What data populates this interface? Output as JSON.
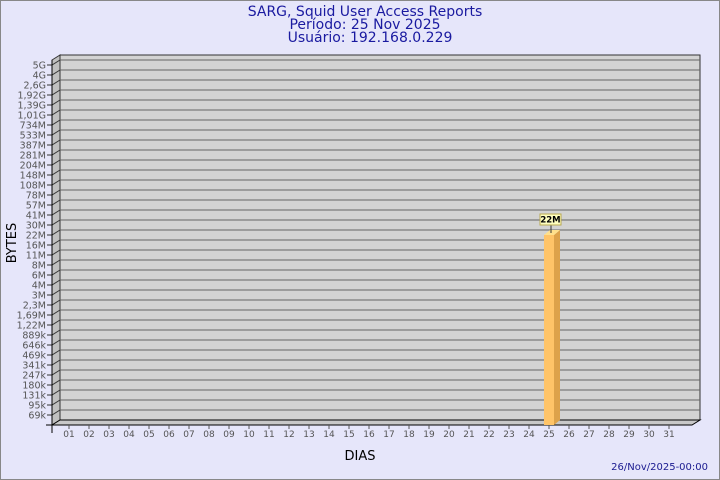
{
  "chart_data": {
    "type": "bar",
    "title": "SARG, Squid User Access Reports",
    "subtitle": [
      "Período: 25 Nov 2025",
      "Usuário: 192.168.0.229"
    ],
    "xlabel": "DIAS",
    "ylabel": "BYTES",
    "y_scale": "log",
    "y_tick_labels": [
      "5G",
      "4G",
      "2,6G",
      "1,92G",
      "1,39G",
      "1,01G",
      "734M",
      "533M",
      "387M",
      "281M",
      "204M",
      "148M",
      "108M",
      "78M",
      "57M",
      "41M",
      "30M",
      "22M",
      "16M",
      "11M",
      "8M",
      "6M",
      "4M",
      "3M",
      "2,3M",
      "1,69M",
      "1,22M",
      "889k",
      "646k",
      "469k",
      "341k",
      "247k",
      "180k",
      "131k",
      "95k",
      "69k"
    ],
    "categories": [
      "01",
      "02",
      "03",
      "04",
      "05",
      "06",
      "07",
      "08",
      "09",
      "10",
      "11",
      "12",
      "13",
      "14",
      "15",
      "16",
      "17",
      "18",
      "19",
      "20",
      "21",
      "22",
      "23",
      "24",
      "25",
      "26",
      "27",
      "28",
      "29",
      "30",
      "31"
    ],
    "values": [
      {
        "day": "25",
        "value_label": "22M"
      }
    ],
    "grid": true,
    "colors": {
      "bar": "#ffc468",
      "bar_side": "#dda24a",
      "bar_top": "#ffe08c",
      "wall": "#d3d3d3",
      "label_box": "#ffffc0"
    }
  },
  "footer": {
    "timestamp": "26/Nov/2025-00:00"
  }
}
